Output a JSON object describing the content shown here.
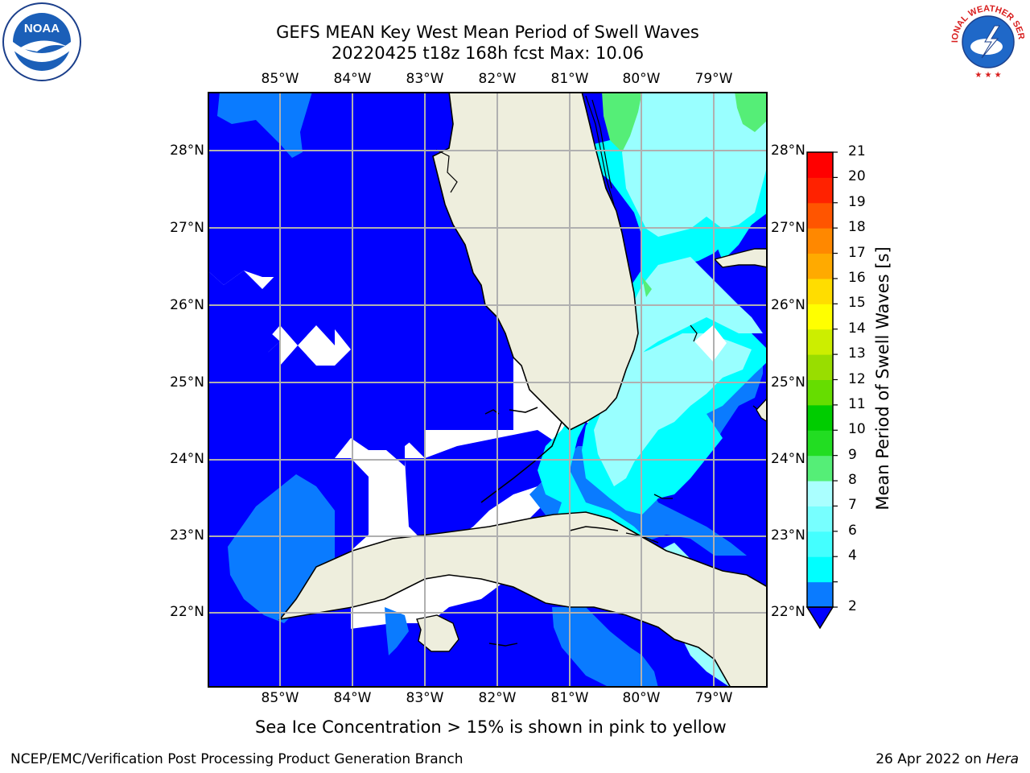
{
  "header": {
    "title_line1": "GEFS MEAN Key West Mean Period of Swell Waves",
    "title_line2": "20220425 t18z 168h fcst   Max: 10.06"
  },
  "logos": {
    "left": {
      "name": "noaa-logo",
      "text": "NOAA"
    },
    "right": {
      "name": "nws-logo",
      "text": "NATIONAL WEATHER SERVICE"
    }
  },
  "map": {
    "lon_labels": [
      "85°W",
      "84°W",
      "83°W",
      "82°W",
      "81°W",
      "80°W",
      "79°W"
    ],
    "lat_labels_left": [
      "28°N",
      "27°N",
      "26°N",
      "25°N",
      "24°N",
      "23°N",
      "22°N"
    ],
    "lat_labels_right": [
      "28°N",
      "27°N",
      "26°N",
      "25°N",
      "24°N",
      "23°N",
      "22°N"
    ],
    "colors": {
      "deep": "#0000ff",
      "mid": "#0a7bff",
      "cyan": "#00ffff",
      "light_cyan": "#99ffff",
      "green": "#55ee55",
      "land": "#eeeedd",
      "grid": "#b0b0b0"
    }
  },
  "colorbar": {
    "label": "Mean Period of Swell Waves [s]",
    "ticks": [
      "2",
      "4",
      "6",
      "7",
      "8",
      "9",
      "10",
      "11",
      "12",
      "13",
      "14",
      "15",
      "16",
      "17",
      "18",
      "19",
      "20",
      "21"
    ],
    "colors": [
      "#0000ff",
      "#0a7bff",
      "#00ffff",
      "#44ffff",
      "#77ffff",
      "#aaffff",
      "#55ee77",
      "#22dd22",
      "#00cc00",
      "#66dd00",
      "#99dd00",
      "#ccee00",
      "#ffff00",
      "#ffdd00",
      "#ffaa00",
      "#ff8800",
      "#ff5500",
      "#ff2200",
      "#ff0000"
    ]
  },
  "note": "Sea Ice Concentration > 15% is shown in pink to yellow",
  "footer": {
    "left": "NCEP/EMC/Verification Post Processing Product Generation Branch",
    "right_prefix": "26 Apr 2022 on ",
    "right_machine": "Hera"
  }
}
